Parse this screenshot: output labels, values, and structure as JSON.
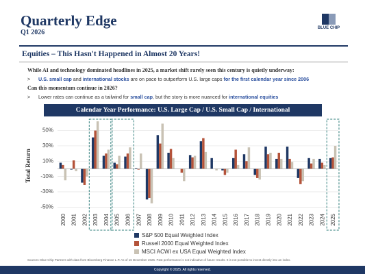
{
  "header": {
    "title": "Quarterly Edge",
    "subtitle": "Q1 2026",
    "logo": "BLUE CHIP"
  },
  "section_title": "Equities – This Hasn't Happened in Almost 20 Years!",
  "lines": [
    {
      "segments": [
        {
          "text": "While AI and technology dominated headlines in 2025, a market shift rarely seen this century is quietly underway:",
          "highlight": false
        }
      ]
    },
    {
      "bullet": ">",
      "segments": [
        {
          "text": "U.S. small cap",
          "highlight": true
        },
        {
          "text": " and ",
          "highlight": false
        },
        {
          "text": "international stocks",
          "highlight": true
        },
        {
          "text": " are on pace to outperform U.S. large caps ",
          "highlight": false
        },
        {
          "text": "for the first calendar year since 2006",
          "highlight": true
        }
      ]
    },
    {
      "segments": [
        {
          "text": "Can this momentum continue in 2026?",
          "highlight": false
        }
      ]
    },
    {
      "bullet": ">",
      "segments": [
        {
          "text": "Lower rates can continue as a tailwind for ",
          "highlight": false
        },
        {
          "text": "small cap",
          "highlight": true
        },
        {
          "text": ", but the story is more nuanced for ",
          "highlight": false
        },
        {
          "text": "international equities",
          "highlight": true
        }
      ]
    }
  ],
  "chart_data": {
    "type": "bar",
    "title": "Calendar Year Performance: U.S. Large Cap / U.S. Small Cap / International",
    "y_label": "Total Return",
    "categories": [
      "2000",
      "2001",
      "2002",
      "2003",
      "2004",
      "2005",
      "2006",
      "2007",
      "2008",
      "2009",
      "2010",
      "2011",
      "2012",
      "2013",
      "2014",
      "2015",
      "2016",
      "2017",
      "2018",
      "2019",
      "2020",
      "2021",
      "2022",
      "2023",
      "2024",
      "2025"
    ],
    "series": [
      {
        "name": "S&P 500 Equal Weighted Index",
        "color": "#1f3864",
        "values": [
          8,
          -1,
          -18,
          41,
          17,
          8,
          16,
          1,
          -40,
          44,
          21,
          0,
          18,
          36,
          14,
          -2,
          14,
          19,
          -8,
          29,
          13,
          29,
          -12,
          14,
          13,
          14
        ]
      },
      {
        "name": "Russell 2000 Equal Weighted Index",
        "color": "#b4533a",
        "values": [
          5,
          11,
          -21,
          50,
          20,
          6,
          20,
          -1,
          -38,
          33,
          26,
          -5,
          15,
          40,
          0,
          -8,
          25,
          10,
          -12,
          19,
          21,
          13,
          -20,
          7,
          8,
          15
        ]
      },
      {
        "name": "MSCI ACWI ex USA Equal Weighted Index",
        "color": "#c9c2b4",
        "values": [
          -15,
          -3,
          -10,
          62,
          25,
          17,
          28,
          20,
          -45,
          59,
          14,
          -16,
          17,
          22,
          -2,
          -5,
          5,
          28,
          -14,
          21,
          13,
          9,
          -16,
          13,
          5,
          30
        ]
      }
    ],
    "ylim": [
      -55,
      63
    ],
    "yticks": [
      {
        "value": -50,
        "label": "-50%"
      },
      {
        "value": -30,
        "label": "-30%"
      },
      {
        "value": -10,
        "label": "-10%"
      },
      {
        "value": 10,
        "label": "10%"
      },
      {
        "value": 30,
        "label": "30%"
      },
      {
        "value": 50,
        "label": "50%"
      }
    ],
    "grid": true
  },
  "footer": {
    "sources": "Sources: Blue Chip Partners with data from Bloomberg Finance L.P. As of 16 December 2025. Past performance is not indicative of future results. It is not possible to invest directly into an index.",
    "copyright": "Copyright © 2025. All rights reserved."
  }
}
